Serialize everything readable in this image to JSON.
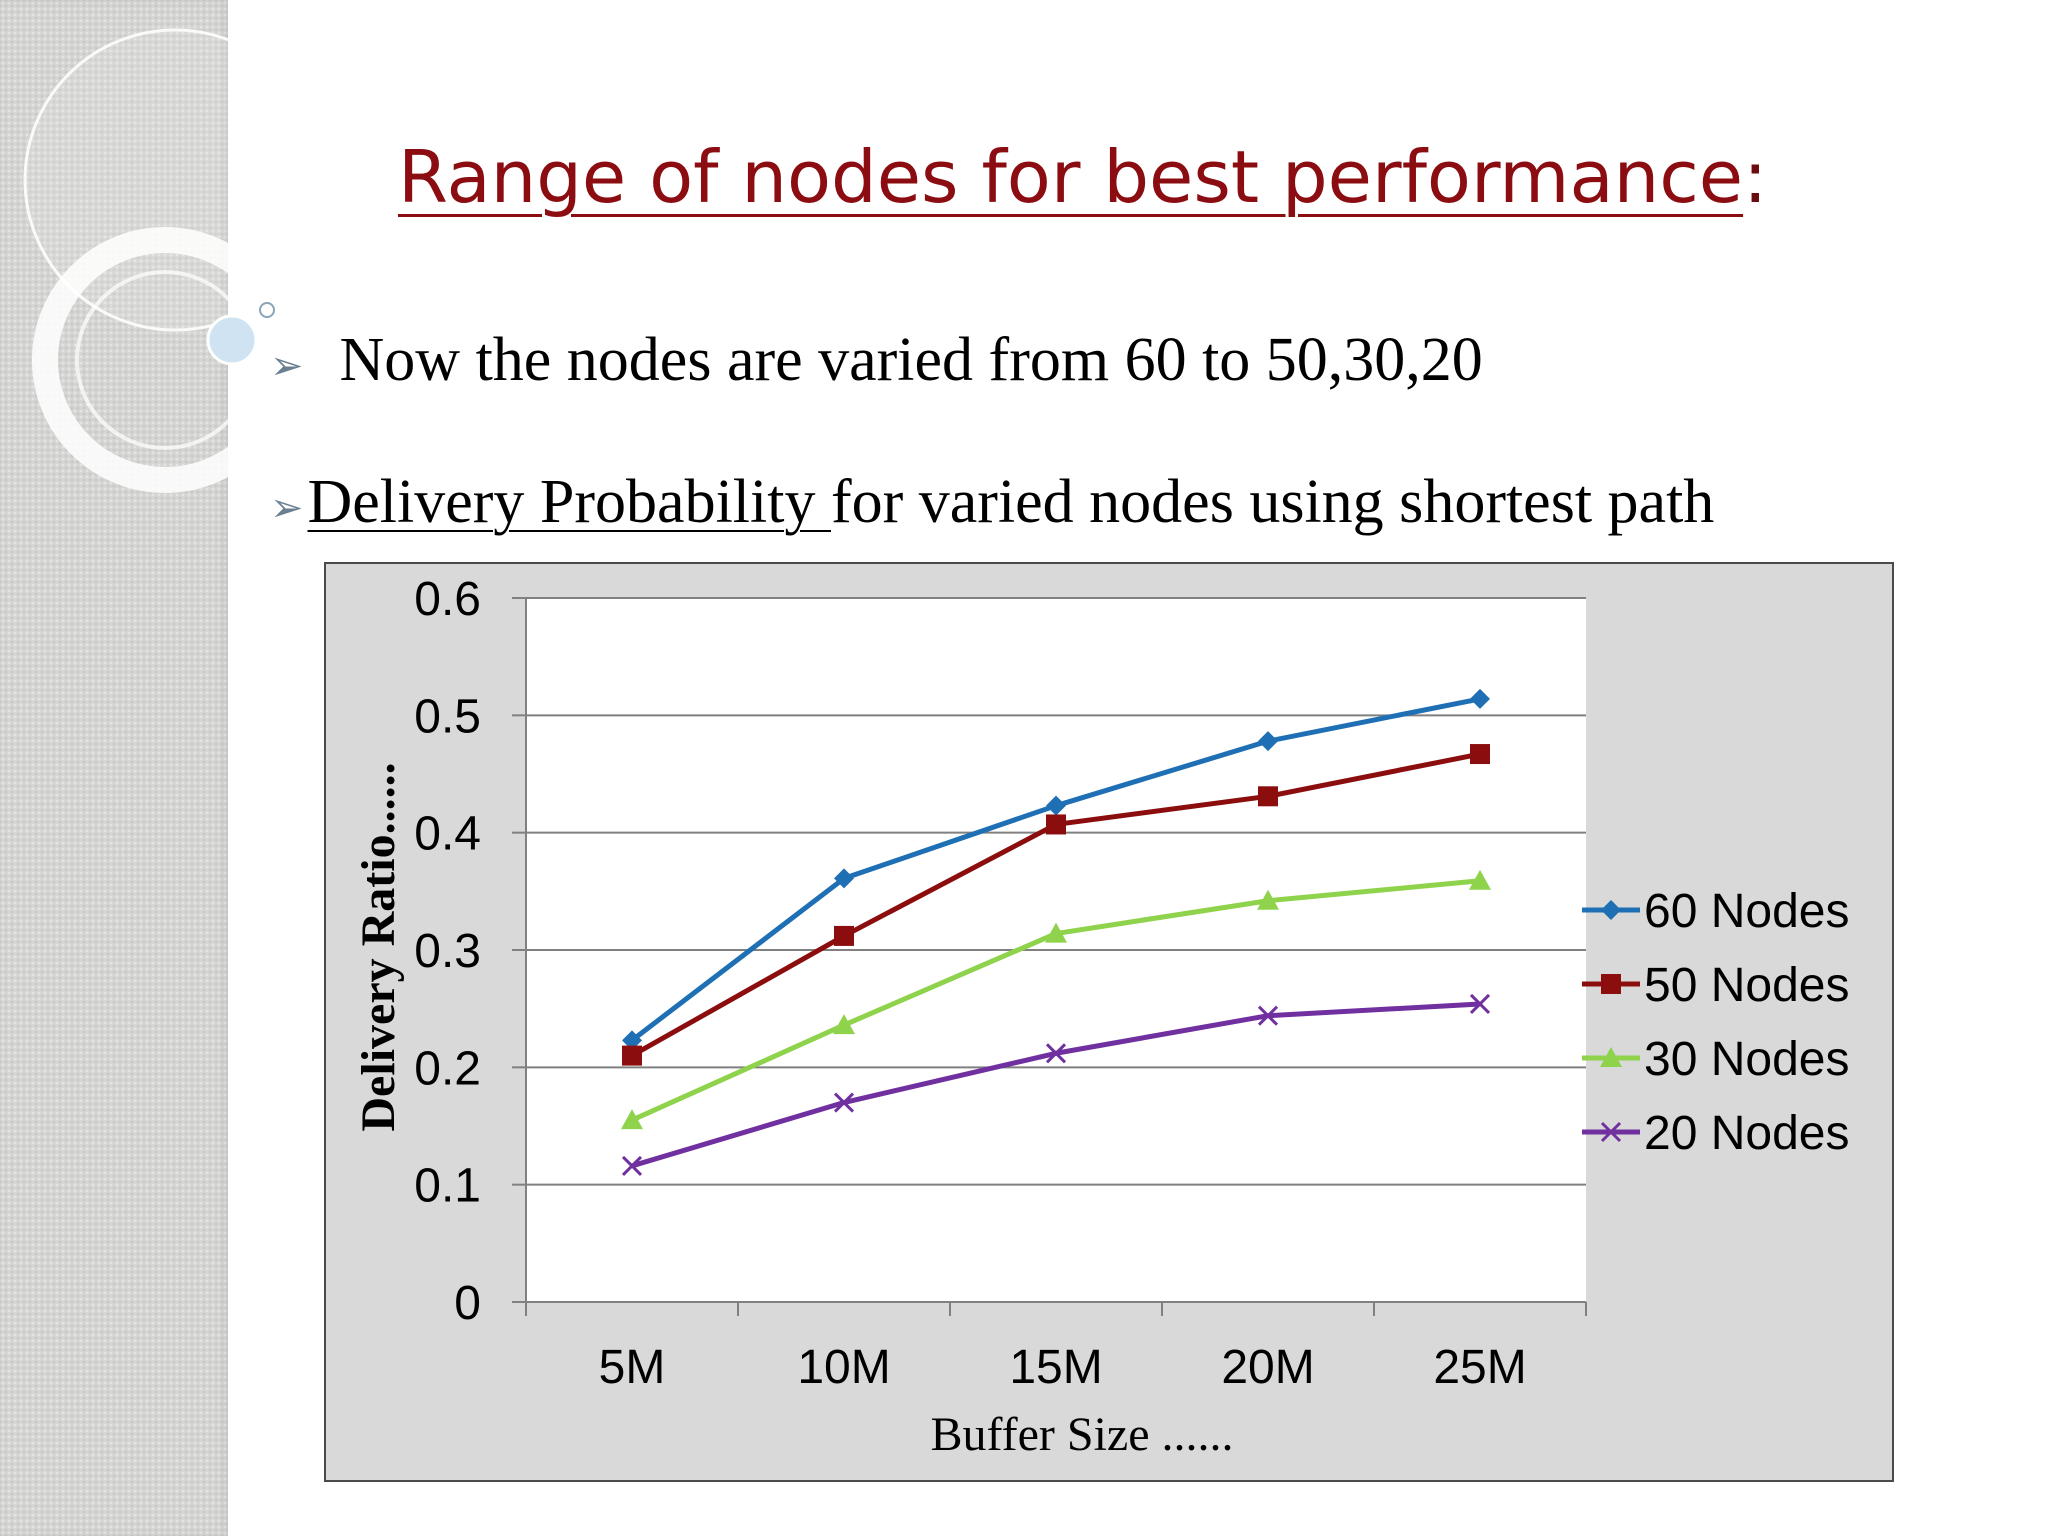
{
  "slide": {
    "title": "Range of nodes for best performance",
    "title_colon": ":",
    "bullet1": "Now the nodes are varied from 60 to 50,30,20",
    "bullet2_underlined": "Delivery Probability ",
    "bullet2_rest": "for varied nodes using shortest path",
    "bullet_symbol": "➢",
    "colors": {
      "title": "#8b0d12",
      "side_panel": "#d5d5d3"
    }
  },
  "chart_data": {
    "type": "line",
    "categories": [
      "5M",
      "10M",
      "15M",
      "20M",
      "25M"
    ],
    "series": [
      {
        "name": "60 Nodes",
        "values": [
          0.223,
          0.361,
          0.423,
          0.478,
          0.514
        ],
        "color": "#1f6fb5",
        "marker": "diamond"
      },
      {
        "name": "50 Nodes",
        "values": [
          0.21,
          0.312,
          0.407,
          0.431,
          0.467
        ],
        "color": "#8b0d0d",
        "marker": "square"
      },
      {
        "name": "30 Nodes",
        "values": [
          0.155,
          0.236,
          0.314,
          0.342,
          0.359
        ],
        "color": "#8ed34b",
        "marker": "triangle"
      },
      {
        "name": "20 Nodes",
        "values": [
          0.116,
          0.17,
          0.212,
          0.244,
          0.254
        ],
        "color": "#7030a0",
        "marker": "x"
      }
    ],
    "yticks": [
      "0",
      "0.1",
      "0.2",
      "0.3",
      "0.4",
      "0.5",
      "0.6"
    ],
    "ylim": [
      0,
      0.6
    ],
    "xlabel": "Buffer Size ......",
    "ylabel": "Delivery Ratio......",
    "grid": true,
    "legend_position": "right"
  }
}
